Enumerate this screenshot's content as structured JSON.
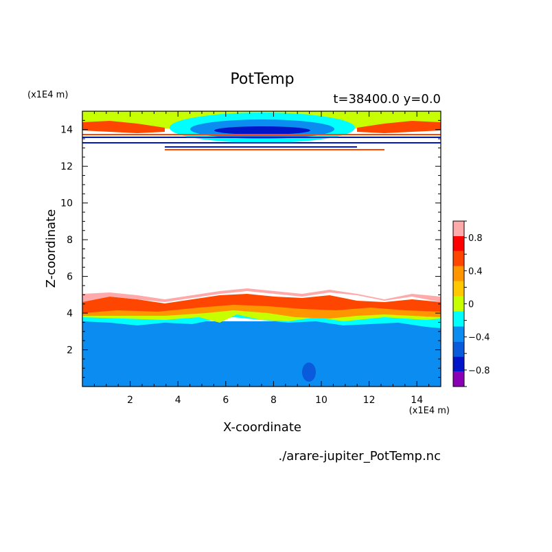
{
  "chart_data": {
    "type": "heatmap",
    "title": "PotTemp",
    "subtitle": "t=38400.0 y=0.0",
    "xlabel": "X-coordinate",
    "ylabel": "Z-coordinate",
    "x_unit": "(x1E4 m)",
    "y_unit": "(x1E4 m)",
    "source_file": "./arare-jupiter_PotTemp.nc",
    "xlim": [
      0,
      15
    ],
    "ylim": [
      0,
      15
    ],
    "x_ticks": [
      2,
      4,
      6,
      8,
      10,
      12,
      14
    ],
    "y_ticks": [
      2,
      4,
      6,
      8,
      10,
      12,
      14
    ],
    "x_tick_labels": [
      "2",
      "4",
      "6",
      "8",
      "10",
      "12",
      "14"
    ],
    "y_tick_labels": [
      "2",
      "4",
      "6",
      "8",
      "10",
      "12",
      "14"
    ],
    "colorbar": {
      "levels": [
        -1.0,
        -0.8,
        -0.6,
        -0.4,
        -0.2,
        0,
        0.2,
        0.4,
        0.6,
        0.8,
        1.0
      ],
      "colors": [
        "#8a00b4",
        "#0014c8",
        "#0a5adc",
        "#0a8cf0",
        "#00ffff",
        "#c8ff00",
        "#ffc800",
        "#ff9600",
        "#ff4600",
        "#ff0000",
        "#ffaaaa"
      ],
      "tick_values": [
        -0.8,
        -0.4,
        0,
        0.4,
        0.8
      ],
      "tick_labels": [
        "−0.8",
        "−0.4",
        "0",
        "0.4",
        "0.8"
      ]
    },
    "regions": [
      {
        "level_index": 3,
        "description": "lower layer z 0-3.5"
      },
      {
        "level_index": 4,
        "description": "boundary band z≈3.5"
      },
      {
        "level_index": 8,
        "description": "warm layer z≈4"
      },
      {
        "level_index": 10,
        "description": "pink band z≈4.5-5"
      },
      {
        "level_index": 5,
        "description": "upper layer z≈14-15"
      },
      {
        "level_index": 1,
        "description": "cold core near z≈14 centered x≈7.5"
      }
    ]
  }
}
